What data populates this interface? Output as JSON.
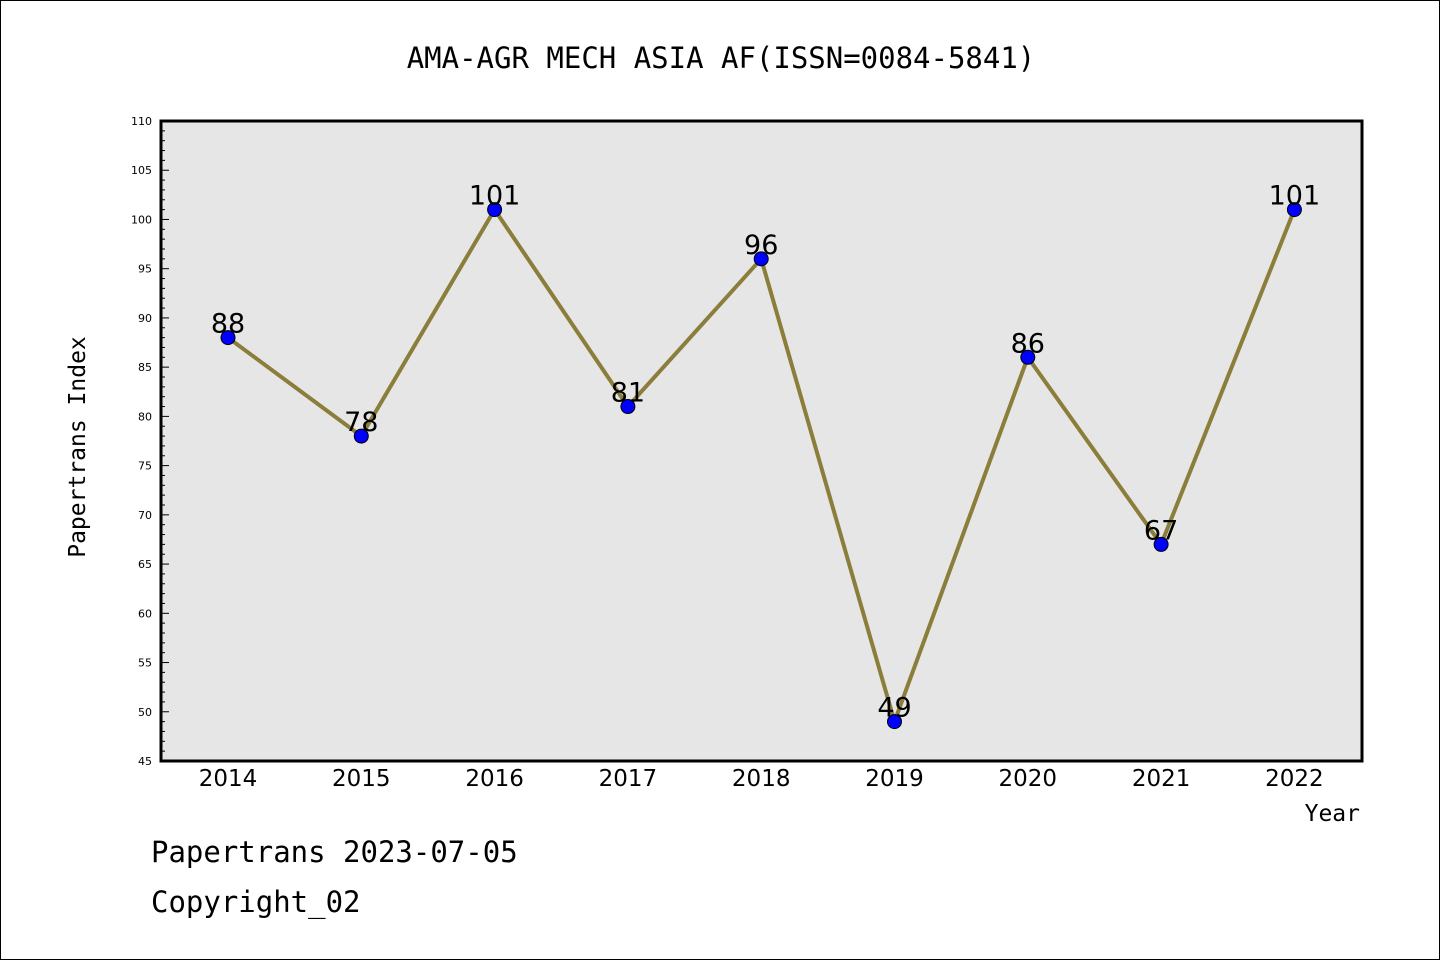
{
  "footer": {
    "date_line": "Papertrans 2023-07-05",
    "copyright_line": "Copyright_02"
  },
  "colors": {
    "plot_background": "#e6e6e6",
    "line": "#8b7d3a",
    "marker": "#0000ff"
  },
  "chart_data": {
    "type": "line",
    "title": "AMA-AGR MECH ASIA AF(ISSN=0084-5841)",
    "xlabel": "Year",
    "ylabel": "Papertrans Index",
    "categories": [
      "2014",
      "2015",
      "2016",
      "2017",
      "2018",
      "2019",
      "2020",
      "2021",
      "2022"
    ],
    "values": [
      88,
      78,
      101,
      81,
      96,
      49,
      86,
      67,
      101
    ],
    "data_labels": [
      "88",
      "78",
      "101",
      "81",
      "96",
      "49",
      "86",
      "67",
      "101"
    ],
    "ylim": [
      45,
      110
    ],
    "yticks": [
      "45",
      "50",
      "55",
      "60",
      "65",
      "70",
      "75",
      "80",
      "85",
      "90",
      "95",
      "100",
      "105",
      "110"
    ],
    "grid": false,
    "legend": "none"
  }
}
